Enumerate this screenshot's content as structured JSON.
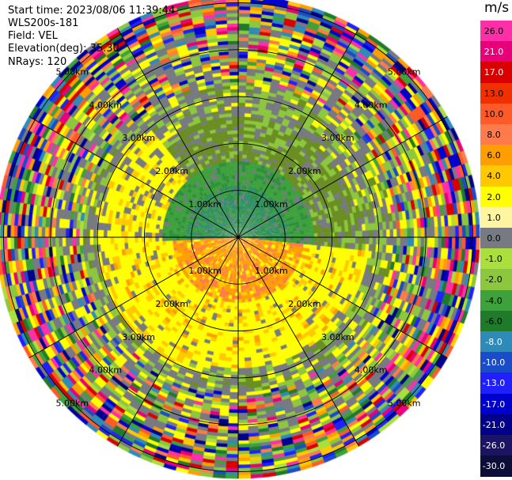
{
  "header": {
    "start_time": "Start time: 2023/08/06 11:39:44",
    "instrument": "WLS200s-181",
    "field": "Field: VEL",
    "elevation": "Elevation(deg): 35.30",
    "nrays": "NRays: 120"
  },
  "colorbar": {
    "unit": "m/s",
    "labels": [
      "26.0",
      "21.0",
      "17.0",
      "13.0",
      "10.0",
      "8.0",
      "6.0",
      "4.0",
      "2.0",
      "1.0",
      "0.0",
      "-1.0",
      "-2.0",
      "-4.0",
      "-6.0",
      "-8.0",
      "-10.0",
      "-13.0",
      "-17.0",
      "-21.0",
      "-26.0",
      "-30.0"
    ],
    "colors": [
      "#ff2fa8",
      "#e8007a",
      "#d80000",
      "#f03000",
      "#ff5a28",
      "#ff7b4b",
      "#ff9e00",
      "#ffc800",
      "#ffff00",
      "#fff5a0",
      "#777a82",
      "#aadf3d",
      "#8dc63f",
      "#3ea13c",
      "#1f7a2a",
      "#2e8bb9",
      "#1a4bc8",
      "#2020ff",
      "#0000cc",
      "#00008b",
      "#1b1464",
      "#0d0d3a"
    ]
  },
  "chart_data": {
    "type": "heatmap",
    "projection": "polar PPI",
    "field": "VEL",
    "units": "m/s",
    "nrays": 120,
    "range_rings_km": [
      1,
      2,
      3,
      4,
      5
    ],
    "ring_labels": [
      "1.00km",
      "2.00km",
      "3.00km",
      "4.00km",
      "5.00km"
    ],
    "radials_deg": [
      0,
      30,
      60,
      90,
      120,
      150,
      180,
      210,
      240,
      270,
      300,
      330
    ],
    "max_range_km": 5.9,
    "colormap_bounds": [
      -30,
      -26,
      -21,
      -17,
      -13,
      -10,
      -8,
      -6,
      -4,
      -2,
      -1,
      0,
      1,
      2,
      4,
      6,
      8,
      10,
      13,
      17,
      21,
      26
    ]
  }
}
